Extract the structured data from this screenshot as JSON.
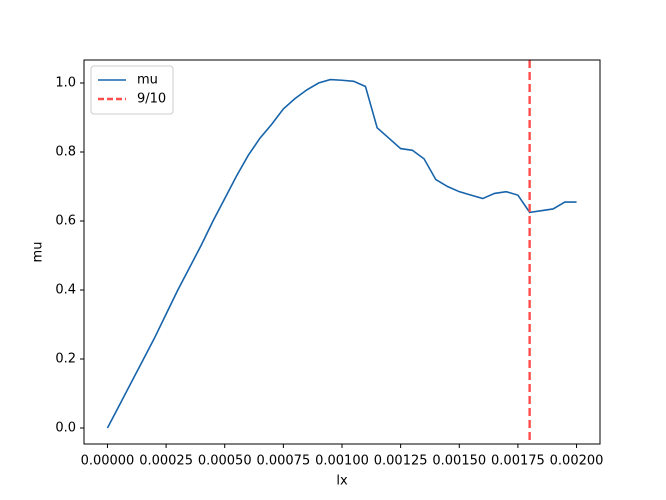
{
  "chart_data": {
    "type": "line",
    "xlabel": "lx",
    "ylabel": "mu",
    "x": [
      0,
      5e-05,
      0.0001,
      0.00015,
      0.0002,
      0.00025,
      0.0003,
      0.00035,
      0.0004,
      0.00045,
      0.0005,
      0.00055,
      0.0006,
      0.00065,
      0.0007,
      0.00075,
      0.0008,
      0.00085,
      0.0009,
      0.00095,
      0.001,
      0.00105,
      0.0011,
      0.00115,
      0.0012,
      0.00125,
      0.0013,
      0.00135,
      0.0014,
      0.00145,
      0.0015,
      0.00155,
      0.0016,
      0.00165,
      0.0017,
      0.00175,
      0.0018,
      0.00185,
      0.0019,
      0.00195,
      0.002
    ],
    "series": [
      {
        "name": "mu",
        "color": "#1764ab",
        "values": [
          0,
          0.065,
          0.13,
          0.195,
          0.26,
          0.33,
          0.4,
          0.465,
          0.53,
          0.6,
          0.665,
          0.73,
          0.79,
          0.84,
          0.88,
          0.925,
          0.955,
          0.98,
          1.0,
          1.01,
          1.008,
          1.005,
          0.99,
          0.87,
          0.84,
          0.81,
          0.805,
          0.78,
          0.72,
          0.7,
          0.685,
          0.675,
          0.665,
          0.68,
          0.685,
          0.675,
          0.625,
          0.63,
          0.635,
          0.655,
          0.655
        ]
      }
    ],
    "vlines": [
      {
        "name": "9/10",
        "x": 0.0018,
        "color": "#ff4d4d",
        "dashed": true
      }
    ],
    "xlim": [
      -0.0001,
      0.0021
    ],
    "ylim": [
      -0.0464,
      1.0667
    ],
    "xticks": [
      {
        "value": 0,
        "label": "0.00000"
      },
      {
        "value": 0.00025,
        "label": "0.00025"
      },
      {
        "value": 0.0005,
        "label": "0.00050"
      },
      {
        "value": 0.00075,
        "label": "0.00075"
      },
      {
        "value": 0.001,
        "label": "0.00100"
      },
      {
        "value": 0.00125,
        "label": "0.00125"
      },
      {
        "value": 0.0015,
        "label": "0.00150"
      },
      {
        "value": 0.00175,
        "label": "0.00175"
      },
      {
        "value": 0.002,
        "label": "0.00200"
      }
    ],
    "yticks": [
      {
        "value": 0,
        "label": "0.0"
      },
      0.2,
      0.4,
      0.6,
      0.8,
      {
        "value": 1,
        "label": "1.0"
      }
    ],
    "grid": false,
    "legend": "upper left"
  }
}
